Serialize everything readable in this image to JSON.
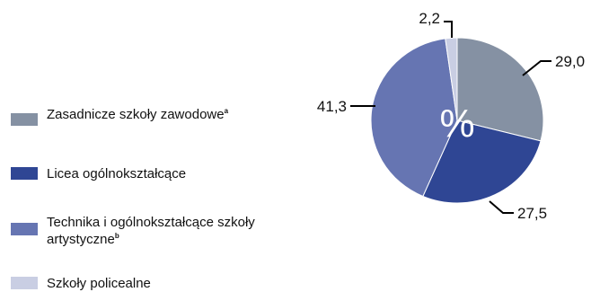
{
  "chart_data": {
    "type": "pie",
    "center_label": "%",
    "slices": [
      {
        "label": "Zasadnicze szkoły zawodowe",
        "superscript": "a",
        "value": 29.0,
        "display": "29,0",
        "color": "#8591a3"
      },
      {
        "label": "Licea ogólnokształcące",
        "superscript": "",
        "value": 27.5,
        "display": "27,5",
        "color": "#2f4694"
      },
      {
        "label": "Technika i ogólnokształcące szkoły artystyczne",
        "superscript": "b",
        "value": 41.3,
        "display": "41,3",
        "color": "#6675b2"
      },
      {
        "label": "Szkoły policealne",
        "superscript": "",
        "value": 2.2,
        "display": "2,2",
        "color": "#c9cee3"
      }
    ],
    "legend_position": "left"
  }
}
